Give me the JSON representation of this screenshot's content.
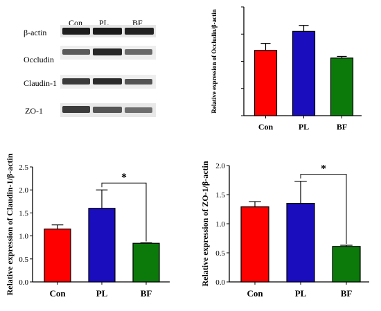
{
  "western_blot": {
    "conditions": [
      "Con",
      "PL",
      "BF"
    ],
    "rows": [
      {
        "label": "β-actin"
      },
      {
        "label": "Occludin"
      },
      {
        "label": "Claudin-1"
      },
      {
        "label": "ZO-1"
      }
    ]
  },
  "chart_data": [
    {
      "id": "occludin",
      "type": "bar",
      "categories": [
        "Con",
        "PL",
        "BF"
      ],
      "values": [
        1.2,
        1.55,
        1.06
      ],
      "errors": [
        0.13,
        0.11,
        0.03
      ],
      "colors": [
        "#ff0000",
        "#1a0dbd",
        "#0b7a0b"
      ],
      "ylabel": "Relative expression of Occludin/β-actin",
      "ylim": [
        0,
        2.0
      ],
      "yticks": [],
      "significance": []
    },
    {
      "id": "claudin",
      "type": "bar",
      "categories": [
        "Con",
        "PL",
        "BF"
      ],
      "values": [
        1.15,
        1.6,
        0.84
      ],
      "errors": [
        0.09,
        0.4,
        0.01
      ],
      "colors": [
        "#ff0000",
        "#1a0dbd",
        "#0b7a0b"
      ],
      "ylabel": "Relative expression of Claudin-1/β-actin",
      "ylim": [
        0,
        2.5
      ],
      "yticks": [
        "0.0",
        "0.5",
        "1.0",
        "1.5",
        "2.0",
        "2.5"
      ],
      "significance": [
        {
          "from": "PL",
          "to": "BF",
          "label": "*"
        }
      ]
    },
    {
      "id": "zo1",
      "type": "bar",
      "categories": [
        "Con",
        "PL",
        "BF"
      ],
      "values": [
        1.29,
        1.35,
        0.61
      ],
      "errors": [
        0.09,
        0.38,
        0.02
      ],
      "colors": [
        "#ff0000",
        "#1a0dbd",
        "#0b7a0b"
      ],
      "ylabel": "Relative expression of ZO-1/β-actin",
      "ylim": [
        0,
        2.0
      ],
      "yticks": [
        "0.0",
        "0.5",
        "1.0",
        "1.5",
        "2.0"
      ],
      "significance": [
        {
          "from": "PL",
          "to": "BF",
          "label": "*"
        }
      ]
    }
  ]
}
